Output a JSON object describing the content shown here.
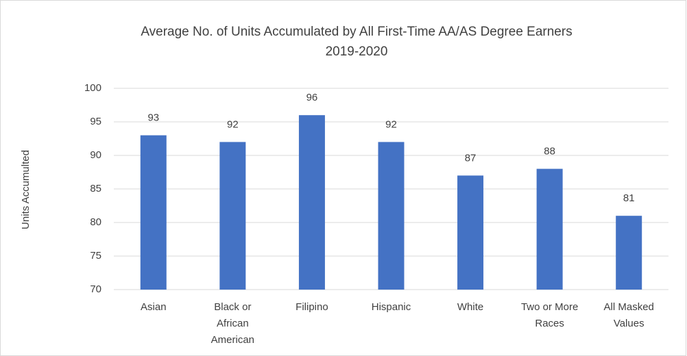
{
  "chart_data": {
    "type": "bar",
    "title": "Average No. of Units Accumulated by All First-Time AA/AS Degree Earners",
    "subtitle": "2019-2020",
    "y_label": "Units Accumulted",
    "categories": [
      "Asian",
      "Black or African American",
      "Filipino",
      "Hispanic",
      "White",
      "Two or More Races",
      "All Masked Values"
    ],
    "values": [
      93,
      92,
      96,
      92,
      87,
      88,
      81
    ],
    "color": "#4472c4",
    "ylim": [
      70,
      100
    ],
    "yticks": [
      70,
      75,
      80,
      85,
      90,
      95,
      100
    ],
    "grid": true
  }
}
